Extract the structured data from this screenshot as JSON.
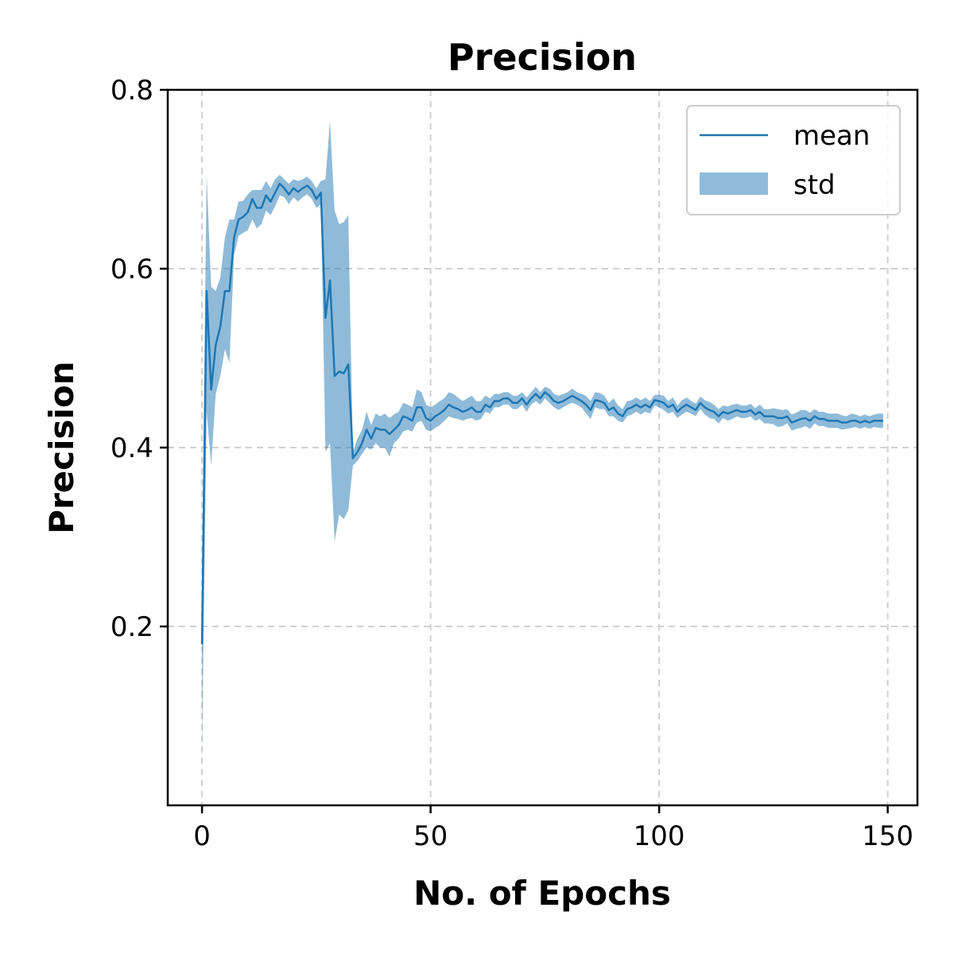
{
  "chart_data": {
    "type": "line",
    "title": "Precision",
    "xlabel": "No. of Epochs",
    "ylabel": "Precision",
    "xlim": [
      -7.5,
      156.5
    ],
    "ylim": [
      0.0,
      0.8
    ],
    "xticks": [
      0,
      50,
      100,
      150
    ],
    "xtick_labels": [
      "0",
      "50",
      "100",
      "150"
    ],
    "yticks": [
      0.2,
      0.4,
      0.6,
      0.8
    ],
    "ytick_labels": [
      "0.2",
      "0.4",
      "0.6",
      "0.8"
    ],
    "grid": true,
    "legend_position": "top-right",
    "colors": {
      "line": "#1f77b4",
      "band": "#1f77b4",
      "band_opacity": 0.5
    },
    "series": [
      {
        "name": "mean",
        "kind": "line",
        "x": [
          0,
          1,
          2,
          3,
          4,
          5,
          6,
          7,
          8,
          9,
          10,
          11,
          12,
          13,
          14,
          15,
          16,
          17,
          18,
          19,
          20,
          21,
          22,
          23,
          24,
          25,
          26,
          27,
          28,
          29,
          30,
          31,
          32,
          33,
          34,
          35,
          36,
          37,
          38,
          39,
          40,
          41,
          42,
          43,
          44,
          45,
          46,
          47,
          48,
          49,
          50,
          51,
          52,
          53,
          54,
          55,
          56,
          57,
          58,
          59,
          60,
          61,
          62,
          63,
          64,
          65,
          66,
          67,
          68,
          69,
          70,
          71,
          72,
          73,
          74,
          75,
          76,
          77,
          78,
          79,
          80,
          81,
          82,
          83,
          84,
          85,
          86,
          87,
          88,
          89,
          90,
          91,
          92,
          93,
          94,
          95,
          96,
          97,
          98,
          99,
          100,
          101,
          102,
          103,
          104,
          105,
          106,
          107,
          108,
          109,
          110,
          111,
          112,
          113,
          114,
          115,
          116,
          117,
          118,
          119,
          120,
          121,
          122,
          123,
          124,
          125,
          126,
          127,
          128,
          129,
          130,
          131,
          132,
          133,
          134,
          135,
          136,
          137,
          138,
          139,
          140,
          141,
          142,
          143,
          144,
          145,
          146,
          147,
          148,
          149
        ],
        "y": [
          0.18,
          0.575,
          0.465,
          0.515,
          0.535,
          0.575,
          0.575,
          0.635,
          0.655,
          0.658,
          0.663,
          0.678,
          0.668,
          0.668,
          0.682,
          0.675,
          0.685,
          0.695,
          0.69,
          0.683,
          0.69,
          0.686,
          0.69,
          0.693,
          0.688,
          0.678,
          0.685,
          0.545,
          0.587,
          0.48,
          0.485,
          0.483,
          0.493,
          0.388,
          0.395,
          0.405,
          0.42,
          0.41,
          0.422,
          0.42,
          0.42,
          0.415,
          0.42,
          0.425,
          0.435,
          0.433,
          0.43,
          0.445,
          0.445,
          0.433,
          0.43,
          0.435,
          0.438,
          0.442,
          0.448,
          0.445,
          0.443,
          0.44,
          0.442,
          0.445,
          0.44,
          0.44,
          0.448,
          0.445,
          0.452,
          0.452,
          0.455,
          0.455,
          0.45,
          0.45,
          0.455,
          0.448,
          0.455,
          0.46,
          0.455,
          0.462,
          0.458,
          0.452,
          0.45,
          0.452,
          0.455,
          0.458,
          0.455,
          0.452,
          0.448,
          0.442,
          0.453,
          0.452,
          0.45,
          0.442,
          0.445,
          0.438,
          0.435,
          0.443,
          0.445,
          0.448,
          0.445,
          0.448,
          0.445,
          0.453,
          0.452,
          0.45,
          0.445,
          0.448,
          0.44,
          0.445,
          0.448,
          0.445,
          0.442,
          0.45,
          0.445,
          0.442,
          0.44,
          0.435,
          0.44,
          0.438,
          0.44,
          0.442,
          0.44,
          0.44,
          0.442,
          0.437,
          0.44,
          0.435,
          0.435,
          0.435,
          0.433,
          0.433,
          0.435,
          0.428,
          0.43,
          0.432,
          0.433,
          0.43,
          0.435,
          0.432,
          0.432,
          0.43,
          0.43,
          0.43,
          0.428,
          0.428,
          0.43,
          0.43,
          0.428,
          0.43,
          0.428,
          0.43,
          0.43,
          0.43
        ]
      },
      {
        "name": "std",
        "kind": "band",
        "x": [
          0,
          1,
          2,
          3,
          4,
          5,
          6,
          7,
          8,
          9,
          10,
          11,
          12,
          13,
          14,
          15,
          16,
          17,
          18,
          19,
          20,
          21,
          22,
          23,
          24,
          25,
          26,
          27,
          28,
          29,
          30,
          31,
          32,
          33,
          34,
          35,
          36,
          37,
          38,
          39,
          40,
          41,
          42,
          43,
          44,
          45,
          46,
          47,
          48,
          49,
          50,
          51,
          52,
          53,
          54,
          55,
          56,
          57,
          58,
          59,
          60,
          61,
          62,
          63,
          64,
          65,
          66,
          67,
          68,
          69,
          70,
          71,
          72,
          73,
          74,
          75,
          76,
          77,
          78,
          79,
          80,
          81,
          82,
          83,
          84,
          85,
          86,
          87,
          88,
          89,
          90,
          91,
          92,
          93,
          94,
          95,
          96,
          97,
          98,
          99,
          100,
          101,
          102,
          103,
          104,
          105,
          106,
          107,
          108,
          109,
          110,
          111,
          112,
          113,
          114,
          115,
          116,
          117,
          118,
          119,
          120,
          121,
          122,
          123,
          124,
          125,
          126,
          127,
          128,
          129,
          130,
          131,
          132,
          133,
          134,
          135,
          136,
          137,
          138,
          139,
          140,
          141,
          142,
          143,
          144,
          145,
          146,
          147,
          148,
          149
        ],
        "lower": [
          0.06,
          0.44,
          0.38,
          0.46,
          0.48,
          0.51,
          0.495,
          0.615,
          0.637,
          0.64,
          0.643,
          0.655,
          0.645,
          0.65,
          0.665,
          0.66,
          0.67,
          0.682,
          0.68,
          0.672,
          0.68,
          0.675,
          0.68,
          0.683,
          0.678,
          0.668,
          0.672,
          0.395,
          0.405,
          0.295,
          0.325,
          0.32,
          0.33,
          0.38,
          0.385,
          0.393,
          0.4,
          0.398,
          0.405,
          0.4,
          0.4,
          0.39,
          0.405,
          0.41,
          0.418,
          0.42,
          0.418,
          0.428,
          0.43,
          0.42,
          0.418,
          0.422,
          0.425,
          0.43,
          0.435,
          0.433,
          0.432,
          0.43,
          0.432,
          0.433,
          0.43,
          0.432,
          0.44,
          0.438,
          0.445,
          0.445,
          0.448,
          0.448,
          0.443,
          0.443,
          0.448,
          0.44,
          0.448,
          0.452,
          0.448,
          0.455,
          0.45,
          0.445,
          0.442,
          0.445,
          0.448,
          0.45,
          0.448,
          0.445,
          0.438,
          0.432,
          0.445,
          0.443,
          0.443,
          0.435,
          0.435,
          0.43,
          0.428,
          0.435,
          0.437,
          0.44,
          0.437,
          0.44,
          0.438,
          0.447,
          0.445,
          0.442,
          0.438,
          0.44,
          0.433,
          0.437,
          0.44,
          0.438,
          0.435,
          0.443,
          0.437,
          0.433,
          0.432,
          0.427,
          0.433,
          0.43,
          0.432,
          0.435,
          0.433,
          0.433,
          0.435,
          0.43,
          0.432,
          0.427,
          0.427,
          0.426,
          0.423,
          0.424,
          0.427,
          0.419,
          0.421,
          0.422,
          0.424,
          0.421,
          0.427,
          0.424,
          0.424,
          0.422,
          0.422,
          0.422,
          0.42,
          0.421,
          0.422,
          0.423,
          0.421,
          0.423,
          0.421,
          0.423,
          0.422,
          0.422
        ],
        "upper": [
          0.27,
          0.705,
          0.58,
          0.575,
          0.59,
          0.635,
          0.655,
          0.655,
          0.675,
          0.676,
          0.683,
          0.688,
          0.688,
          0.688,
          0.698,
          0.69,
          0.7,
          0.705,
          0.7,
          0.695,
          0.7,
          0.698,
          0.7,
          0.703,
          0.698,
          0.69,
          0.698,
          0.7,
          0.765,
          0.665,
          0.65,
          0.652,
          0.66,
          0.395,
          0.41,
          0.42,
          0.44,
          0.425,
          0.438,
          0.435,
          0.438,
          0.433,
          0.437,
          0.44,
          0.45,
          0.448,
          0.445,
          0.465,
          0.462,
          0.448,
          0.445,
          0.448,
          0.452,
          0.455,
          0.462,
          0.46,
          0.456,
          0.452,
          0.455,
          0.458,
          0.452,
          0.452,
          0.458,
          0.455,
          0.46,
          0.46,
          0.462,
          0.462,
          0.458,
          0.458,
          0.462,
          0.456,
          0.462,
          0.468,
          0.462,
          0.468,
          0.466,
          0.46,
          0.458,
          0.46,
          0.462,
          0.466,
          0.462,
          0.46,
          0.458,
          0.452,
          0.462,
          0.461,
          0.458,
          0.45,
          0.455,
          0.447,
          0.443,
          0.452,
          0.453,
          0.456,
          0.453,
          0.456,
          0.452,
          0.459,
          0.459,
          0.458,
          0.452,
          0.456,
          0.447,
          0.453,
          0.456,
          0.452,
          0.449,
          0.457,
          0.453,
          0.451,
          0.448,
          0.443,
          0.447,
          0.446,
          0.448,
          0.449,
          0.447,
          0.447,
          0.449,
          0.444,
          0.448,
          0.443,
          0.443,
          0.444,
          0.443,
          0.442,
          0.443,
          0.437,
          0.439,
          0.442,
          0.442,
          0.439,
          0.443,
          0.44,
          0.44,
          0.438,
          0.438,
          0.438,
          0.436,
          0.435,
          0.438,
          0.437,
          0.435,
          0.437,
          0.435,
          0.437,
          0.438,
          0.438
        ]
      }
    ]
  }
}
